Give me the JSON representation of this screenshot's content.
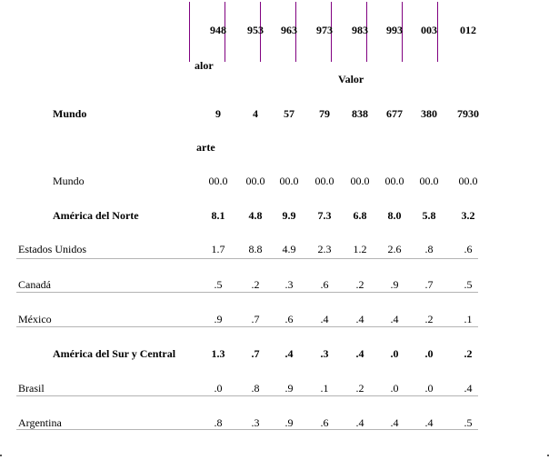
{
  "years": [
    "948",
    "953",
    "963",
    "973",
    "983",
    "993",
    "003",
    "012"
  ],
  "value_label_left": "alor",
  "value_label_center": "Valor",
  "world_label": "Mundo",
  "world_values": [
    "9",
    "4",
    "57",
    "79",
    "838",
    "677",
    "380",
    "7930"
  ],
  "share_label": "arte",
  "rows": [
    {
      "label": "Mundo",
      "values": [
        "00.0",
        "00.0",
        "00.0",
        "00.0",
        "00.0",
        "00.0",
        "00.0",
        "00.0"
      ]
    },
    {
      "label": "América del Norte",
      "values": [
        "8.1",
        "4.8",
        "9.9",
        "7.3",
        "6.8",
        "8.0",
        "5.8",
        "3.2"
      ]
    },
    {
      "label": "Estados Unidos",
      "values": [
        "1.7",
        "8.8",
        "4.9",
        "2.3",
        "1.2",
        "2.6",
        ".8",
        ".6"
      ]
    },
    {
      "label": "Canadá",
      "values": [
        ".5",
        ".2",
        ".3",
        ".6",
        ".2",
        ".9",
        ".7",
        ".5"
      ]
    },
    {
      "label": "México",
      "values": [
        ".9",
        ".7",
        ".6",
        ".4",
        ".4",
        ".4",
        ".2",
        ".1"
      ]
    },
    {
      "label": "América del Sur y Central",
      "values": [
        "1.3",
        ".7",
        ".4",
        ".3",
        ".4",
        ".0",
        ".0",
        ".2"
      ]
    },
    {
      "label": "Brasil",
      "values": [
        ".0",
        ".8",
        ".9",
        ".1",
        ".2",
        ".0",
        ".0",
        ".4"
      ]
    },
    {
      "label": "Argentina",
      "values": [
        ".8",
        ".3",
        ".9",
        ".6",
        ".4",
        ".4",
        ".4",
        ".5"
      ]
    }
  ]
}
